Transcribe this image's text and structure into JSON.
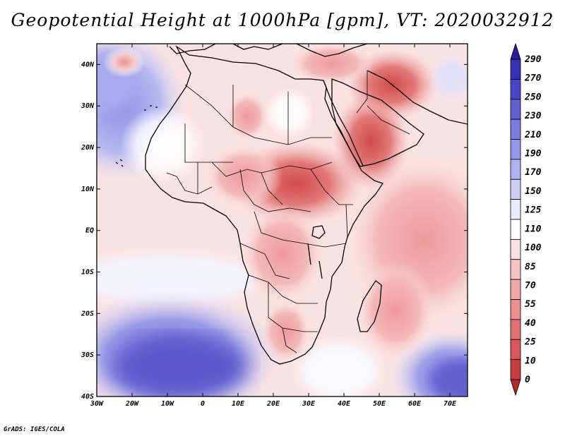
{
  "title": "Geopotential Height at 1000hPa [gpm], VT: 2020032912",
  "credit": "GrADS: IGES/COLA",
  "map": {
    "region": "Africa",
    "variable": "Geopotential Height",
    "level": "1000hPa",
    "units": "gpm",
    "valid_time": "2020032912",
    "lon_range": [
      -30,
      75
    ],
    "lat_range": [
      -40,
      45
    ],
    "lon_labels": [
      "30W",
      "20W",
      "10W",
      "0",
      "10E",
      "20E",
      "30E",
      "40E",
      "50E",
      "60E",
      "70E"
    ],
    "lat_labels": [
      "40N",
      "30N",
      "20N",
      "10N",
      "EQ",
      "10S",
      "20S",
      "30S",
      "40S"
    ]
  },
  "colorbar": {
    "levels": [
      "290",
      "270",
      "250",
      "230",
      "210",
      "190",
      "170",
      "150",
      "125",
      "110",
      "100",
      "85",
      "70",
      "55",
      "40",
      "25",
      "10",
      "0"
    ],
    "colors": [
      "#2a1c9a",
      "#3a30b4",
      "#4c46c6",
      "#6460d2",
      "#7c7ade",
      "#9596e8",
      "#b0b2f0",
      "#cdd0f8",
      "#eaecfc",
      "#ffffff",
      "#fbe0e0",
      "#f6c4c4",
      "#f0a8a8",
      "#ea8e8e",
      "#e07272",
      "#d65858",
      "#c83e3e",
      "#b52828"
    ]
  }
}
